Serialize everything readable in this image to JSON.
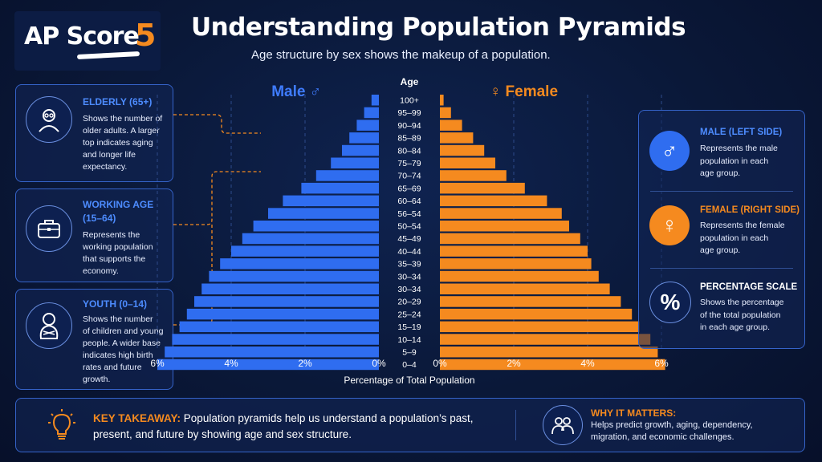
{
  "logo": {
    "text": "AP Score",
    "number": "5"
  },
  "header": {
    "title": "Understanding Population Pyramids",
    "subtitle": "Age structure by sex shows the makeup of a population."
  },
  "left_cards": [
    {
      "title": "ELDERLY (65+)",
      "lines": [
        "Shows the number of",
        "older adults. A larger",
        "top indicates aging",
        "and longer life",
        "expectancy."
      ],
      "icon": "elderly-person-icon"
    },
    {
      "title_lines": [
        "WORKING AGE",
        "(15–64)"
      ],
      "lines": [
        "Represents the",
        "working population",
        "that supports the",
        "economy."
      ],
      "icon": "briefcase-icon"
    },
    {
      "title": "YOUTH (0–14)",
      "lines": [
        "Shows the number",
        "of children and young",
        "people. A wider base",
        "indicates high birth",
        "rates and future",
        "growth."
      ],
      "icon": "baby-icon"
    }
  ],
  "legend": [
    {
      "title": "MALE (LEFT SIDE)",
      "lines": [
        "Represents the male",
        "population in each",
        "age group."
      ],
      "symbol": "♂",
      "color": "#2f6df0"
    },
    {
      "title": "FEMALE (RIGHT SIDE)",
      "lines": [
        "Represents the female",
        "population in each",
        "age group."
      ],
      "symbol": "♀",
      "color": "#f58a1f"
    },
    {
      "title": "PERCENTAGE SCALE",
      "lines": [
        "Shows the percentage",
        "of the total population",
        "in each age group."
      ],
      "symbol": "%",
      "color": "#0d2050"
    }
  ],
  "bottom": {
    "takeaway_label": "KEY TAKEAWAY:",
    "takeaway_line1": "Population pyramids help us understand a population’s past,",
    "takeaway_line2": "present, and future by showing age and sex structure.",
    "why_title": "WHY IT MATTERS:",
    "why_line1": "Helps predict growth, aging, dependency,",
    "why_line2": "migration, and economic challenges."
  },
  "colors": {
    "male": "#2f6df0",
    "female": "#f58a1f",
    "accent_blue": "#4d8cff"
  },
  "chart_data": {
    "type": "bar",
    "orientation": "horizontal-population-pyramid",
    "male_label": "Male ♂",
    "female_label": "♀ Female",
    "age_header": "Age",
    "xlabel": "Percentage of Total Population",
    "xticks_male": [
      "6%",
      "4%",
      "2%",
      "0%"
    ],
    "xticks_female": [
      "0%",
      "2%",
      "4%",
      "6%"
    ],
    "xlim": [
      0,
      6
    ],
    "categories": [
      "100+",
      "95–99",
      "90–94",
      "85–89",
      "80–84",
      "75–79",
      "70–74",
      "65–69",
      "60–64",
      "56–54",
      "50–54",
      "45–49",
      "40–44",
      "35–39",
      "30–34",
      "30–34",
      "20–29",
      "25–24",
      "15–19",
      "10–14",
      "5–9",
      "0–4"
    ],
    "series": [
      {
        "name": "Male",
        "values": [
          0.2,
          0.4,
          0.6,
          0.8,
          1.0,
          1.3,
          1.7,
          2.1,
          2.6,
          3.0,
          3.4,
          3.7,
          4.0,
          4.3,
          4.6,
          4.8,
          5.0,
          5.2,
          5.4,
          5.6,
          5.8,
          6.0
        ]
      },
      {
        "name": "Female",
        "values": [
          0.1,
          0.3,
          0.6,
          0.9,
          1.2,
          1.5,
          1.8,
          2.3,
          2.9,
          3.3,
          3.5,
          3.8,
          4.0,
          4.1,
          4.3,
          4.6,
          4.9,
          5.2,
          5.4,
          5.7,
          5.9,
          6.1
        ]
      }
    ]
  }
}
